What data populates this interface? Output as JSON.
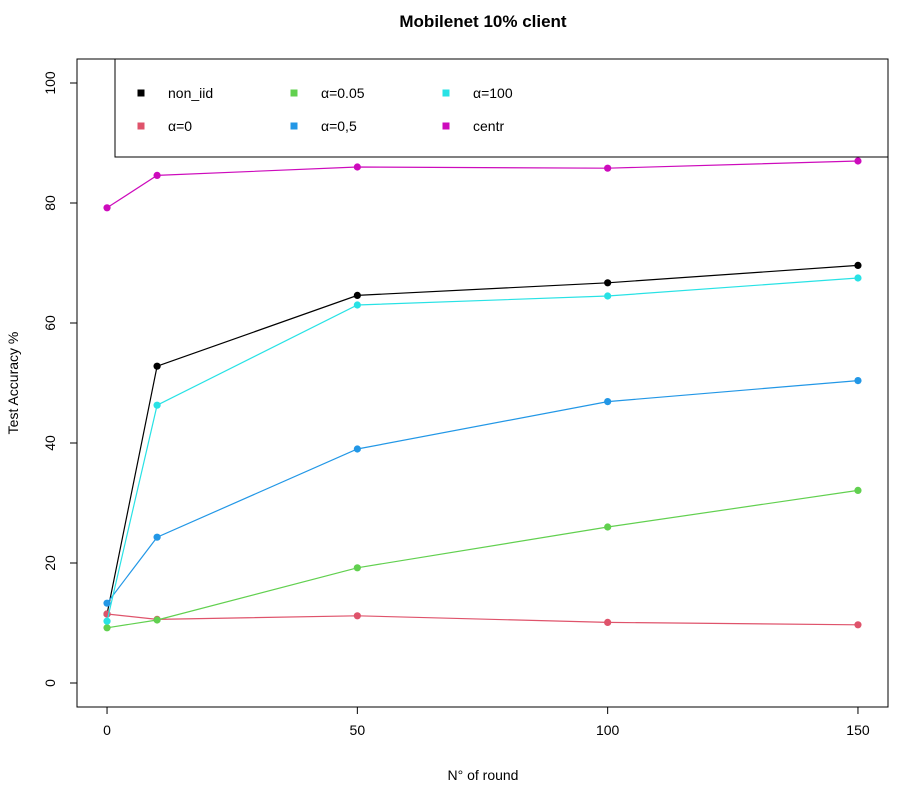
{
  "chart_data": {
    "type": "line",
    "title": "Mobilenet 10% client",
    "xlabel": "N° of round",
    "ylabel": "Test Accuracy %",
    "xlim": [
      -6,
      156
    ],
    "ylim": [
      -4,
      104
    ],
    "xticks": [
      0,
      50,
      100,
      150
    ],
    "yticks": [
      0,
      20,
      40,
      60,
      80,
      100
    ],
    "grid": false,
    "legend_position": "top",
    "x": [
      0,
      10,
      50,
      100,
      150
    ],
    "series": [
      {
        "name": "non_iid",
        "color": "#000000",
        "values": [
          11.5,
          52.8,
          64.6,
          66.7,
          69.6
        ]
      },
      {
        "name": "α=0",
        "color": "#DF536B",
        "values": [
          11.5,
          10.6,
          11.2,
          10.1,
          9.7
        ]
      },
      {
        "name": "α=0.05",
        "color": "#61D04F",
        "values": [
          9.2,
          10.5,
          19.2,
          26.0,
          32.1
        ]
      },
      {
        "name": "α=0,5",
        "color": "#2297E6",
        "values": [
          13.3,
          24.3,
          39.0,
          46.9,
          50.4
        ]
      },
      {
        "name": "α=100",
        "color": "#28E2E5",
        "values": [
          10.3,
          46.3,
          63.0,
          64.5,
          67.5
        ]
      },
      {
        "name": "centr",
        "color": "#CD0BBC",
        "values": [
          79.2,
          84.6,
          86.0,
          85.8,
          87.0
        ]
      }
    ]
  }
}
